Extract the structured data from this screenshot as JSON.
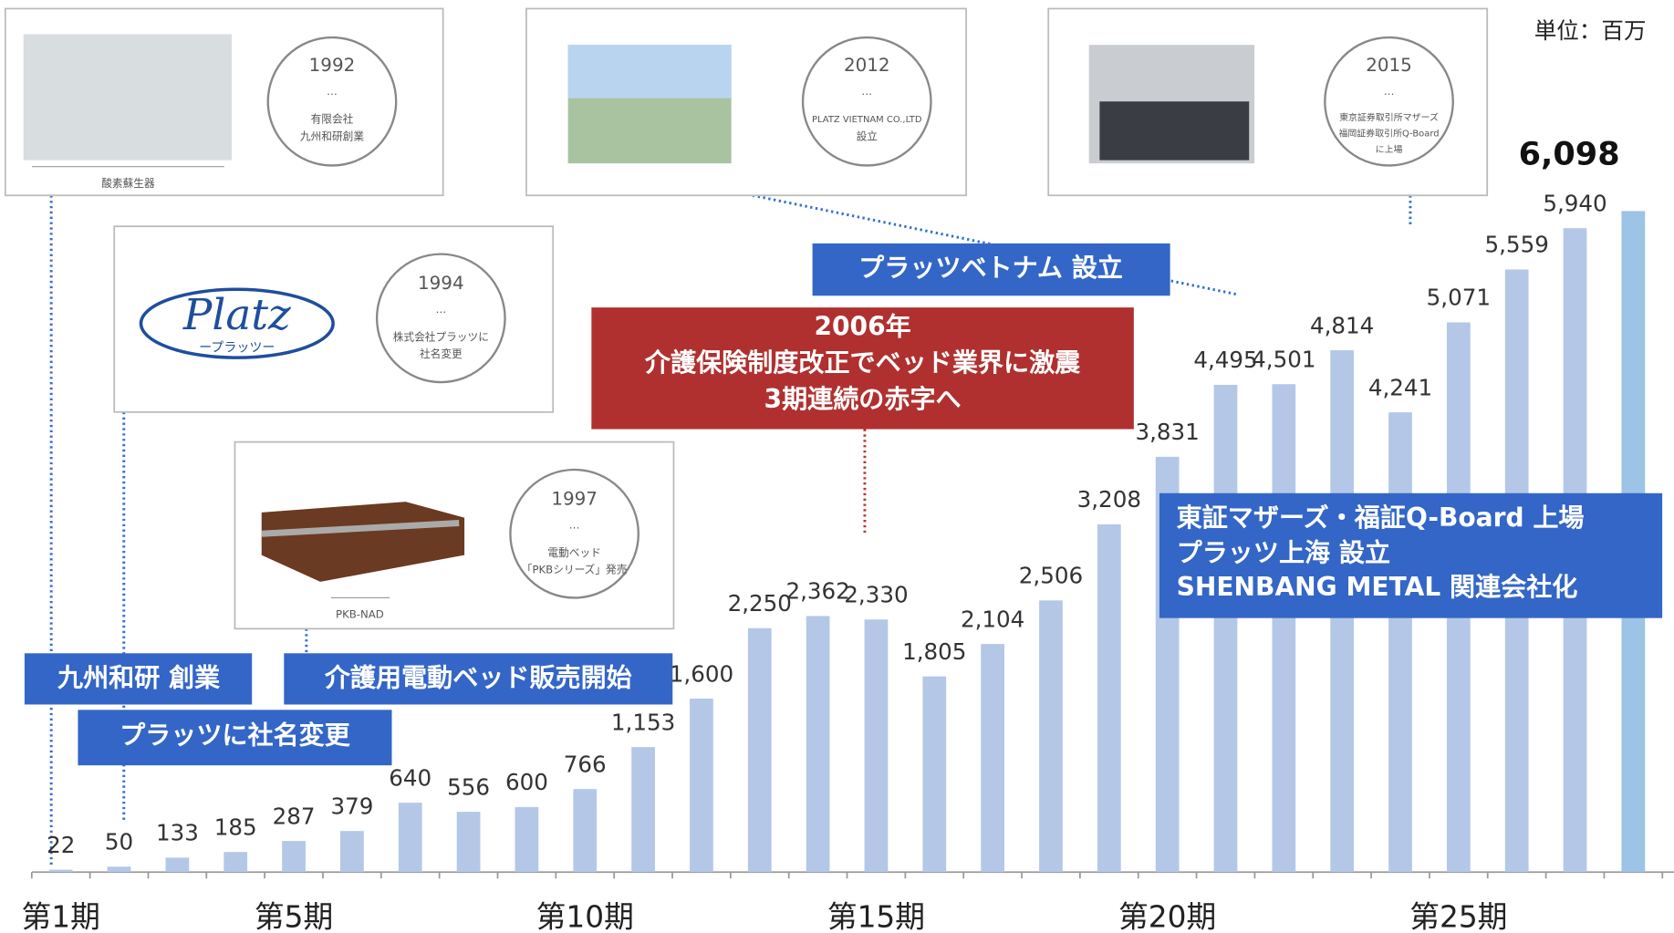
{
  "chart_data": {
    "type": "bar",
    "unit": "単位：百万",
    "categories": [
      "第1期",
      null,
      null,
      null,
      "第5期",
      null,
      null,
      null,
      null,
      "第10期",
      null,
      null,
      null,
      null,
      "第15期",
      null,
      null,
      null,
      null,
      "第20期",
      null,
      null,
      null,
      null,
      "第25期",
      null,
      null,
      null
    ],
    "values": [
      22,
      50,
      133,
      185,
      287,
      379,
      640,
      556,
      600,
      766,
      1153,
      1600,
      2250,
      2362,
      2330,
      1805,
      2104,
      2506,
      3208,
      3831,
      4495,
      4501,
      4814,
      4241,
      5071,
      5559,
      5940,
      6098
    ],
    "value_labels": [
      "22",
      "50",
      "133",
      "185",
      "287",
      "379",
      "640",
      "556",
      "600",
      "766",
      "1,153",
      "1,600",
      "2,250",
      "2,362",
      "2,330",
      "1,805",
      "2,104",
      "2,506",
      "3,208",
      "3,831",
      "4,495",
      "4,501",
      "4,814",
      "4,241",
      "5,071",
      "5,559",
      "5,940",
      "6,098"
    ],
    "colors": [
      "#b4c7e7",
      "#b4c7e7",
      "#b4c7e7",
      "#b4c7e7",
      "#b4c7e7",
      "#b4c7e7",
      "#b4c7e7",
      "#b4c7e7",
      "#b4c7e7",
      "#b4c7e7",
      "#b4c7e7",
      "#b4c7e7",
      "#b4c7e7",
      "#b4c7e7",
      "#b4c7e7",
      "#b4c7e7",
      "#b4c7e7",
      "#b4c7e7",
      "#b4c7e7",
      "#b4c7e7",
      "#b4c7e7",
      "#b4c7e7",
      "#b4c7e7",
      "#b4c7e7",
      "#b4c7e7",
      "#b4c7e7",
      "#b4c7e7",
      "#9dc3e6"
    ],
    "ylim": [
      0,
      6400
    ],
    "callouts": [
      {
        "lines": [
          "九州和研 創業"
        ]
      },
      {
        "lines": [
          "プラッツに社名変更"
        ]
      },
      {
        "lines": [
          "介護用電動ベッド販売開始"
        ]
      },
      {
        "lines": [
          "プラッツベトナム 設立"
        ]
      },
      {
        "lines": [
          "2006年",
          "介護保険制度改正でベッド業界に激震",
          "3期連続の赤字へ"
        ]
      },
      {
        "lines": [
          "東証マザーズ・福証Q-Board 上場",
          "プラッツ上海 設立",
          "SHENBANG METAL 関連会社化"
        ]
      }
    ]
  },
  "cards": [
    {
      "year": "1992",
      "dots": "…",
      "lines": [
        "有限会社",
        "九州和研創業"
      ],
      "caption": "酸素蘇生器"
    },
    {
      "year": "2012",
      "dots": "…",
      "lines": [
        "PLATZ VIETNAM CO.,LTD",
        "設立"
      ]
    },
    {
      "year": "2015",
      "dots": "…",
      "lines": [
        "東京証券取引所マザーズ",
        "福岡証券取引所Q-Board",
        "に上場"
      ]
    },
    {
      "year": "1994",
      "dots": "…",
      "lines": [
        "株式会社プラッツに",
        "社名変更"
      ],
      "logo": "Platz",
      "logo_sub": "ープラッツー"
    },
    {
      "year": "1997",
      "dots": "…",
      "lines": [
        "電動ベッド",
        "「PKBシリーズ」発売"
      ],
      "caption": "PKB-NAD"
    }
  ]
}
